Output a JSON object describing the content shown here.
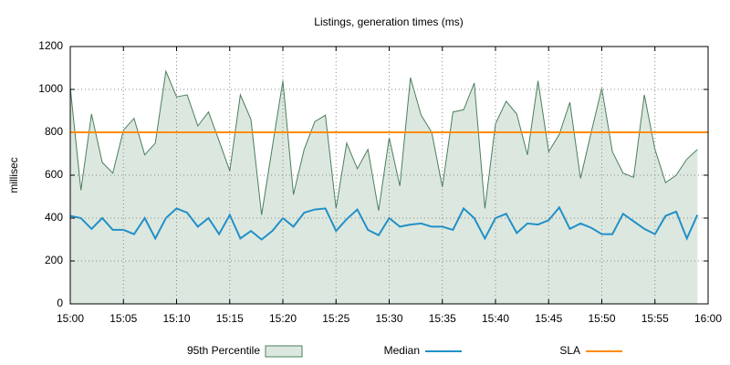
{
  "chart_data": {
    "type": "area-line",
    "title": "Listings, generation times (ms)",
    "ylabel": "millisec",
    "x": [
      "15:00",
      "15:01",
      "15:02",
      "15:03",
      "15:04",
      "15:05",
      "15:06",
      "15:07",
      "15:08",
      "15:09",
      "15:10",
      "15:11",
      "15:12",
      "15:13",
      "15:14",
      "15:15",
      "15:16",
      "15:17",
      "15:18",
      "15:19",
      "15:20",
      "15:21",
      "15:22",
      "15:23",
      "15:24",
      "15:25",
      "15:26",
      "15:27",
      "15:28",
      "15:29",
      "15:30",
      "15:31",
      "15:32",
      "15:33",
      "15:34",
      "15:35",
      "15:36",
      "15:37",
      "15:38",
      "15:39",
      "15:40",
      "15:41",
      "15:42",
      "15:43",
      "15:44",
      "15:45",
      "15:46",
      "15:47",
      "15:48",
      "15:49",
      "15:50",
      "15:51",
      "15:52",
      "15:53",
      "15:54",
      "15:55",
      "15:56",
      "15:57",
      "15:58",
      "15:59"
    ],
    "xlim": [
      "15:00",
      "16:00"
    ],
    "xticks": [
      "15:00",
      "15:05",
      "15:10",
      "15:15",
      "15:20",
      "15:25",
      "15:30",
      "15:35",
      "15:40",
      "15:45",
      "15:50",
      "15:55",
      "16:00"
    ],
    "ylim": [
      0,
      1200
    ],
    "yticks": [
      0,
      200,
      400,
      600,
      800,
      1000,
      1200
    ],
    "grid": true,
    "legend": "bottom",
    "series": [
      {
        "name": "95th Percentile",
        "kind": "area",
        "color": "#4a7f5c",
        "fill": "#dce8df",
        "values": [
          1010,
          530,
          885,
          660,
          610,
          810,
          865,
          695,
          750,
          1085,
          965,
          975,
          830,
          895,
          760,
          620,
          975,
          860,
          415,
          730,
          1040,
          510,
          720,
          850,
          880,
          445,
          750,
          630,
          720,
          435,
          775,
          550,
          1055,
          880,
          800,
          545,
          895,
          905,
          1030,
          445,
          840,
          945,
          885,
          695,
          1040,
          710,
          790,
          940,
          585,
          800,
          1005,
          710,
          610,
          590,
          975,
          720,
          565,
          600,
          675,
          720
        ]
      },
      {
        "name": "Median",
        "kind": "line",
        "color": "#2290c8",
        "values": [
          410,
          400,
          350,
          400,
          345,
          345,
          325,
          400,
          305,
          400,
          445,
          425,
          360,
          400,
          325,
          415,
          305,
          340,
          300,
          340,
          400,
          360,
          425,
          440,
          445,
          340,
          395,
          440,
          345,
          320,
          400,
          360,
          370,
          375,
          360,
          360,
          345,
          445,
          400,
          305,
          400,
          420,
          330,
          375,
          370,
          390,
          450,
          350,
          375,
          355,
          325,
          325,
          420,
          385,
          350,
          325,
          410,
          430,
          305,
          415
        ]
      }
    ],
    "sla": {
      "name": "SLA",
      "value": 800,
      "color": "#ff8c00"
    }
  }
}
